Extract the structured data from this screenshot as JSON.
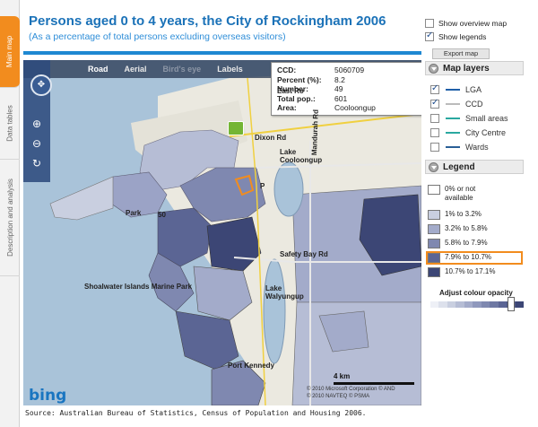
{
  "tabs": [
    {
      "label": "Main map"
    },
    {
      "label": "Data tables"
    },
    {
      "label": "Description and analysis"
    }
  ],
  "header": {
    "title": "Persons aged 0 to 4 years, the City of Rockingham 2006",
    "subtitle": "(As a percentage of total persons excluding overseas visitors)"
  },
  "options": {
    "overview": {
      "label": "Show overview map",
      "checked": false
    },
    "legends": {
      "label": "Show legends",
      "checked": true
    },
    "export_label": "Export map"
  },
  "map": {
    "view_tabs": [
      {
        "label": "Road",
        "state": "selected"
      },
      {
        "label": "Aerial",
        "state": "normal"
      },
      {
        "label": "Bird's eye",
        "state": "disabled"
      },
      {
        "label": "Labels",
        "state": "normal"
      }
    ],
    "tooltip": [
      {
        "key": "CCD:",
        "value": "5060709"
      },
      {
        "key": "Percent (%):",
        "value": "8.2"
      },
      {
        "key": "Number:",
        "value": "49"
      },
      {
        "key": "Total pop.:",
        "value": "601"
      },
      {
        "key": "Area:",
        "value": "Cooloongup"
      }
    ],
    "places": {
      "east_rockingham": "East Ro",
      "dixon_rd": "Dixon Rd",
      "lake_cooloongup": "Lake Cooloongup",
      "park": "Park",
      "road_num": "50",
      "p": "P",
      "safety_bay_rd": "Safety Bay Rd",
      "lake_walyungup": "Lake Walyungup",
      "shoalwater": "Shoalwater Islands Marine Park",
      "port_kennedy": "Port Kennedy",
      "mandurah_rd": "Mandurah Rd"
    },
    "scale": "4 km",
    "copyright1": "© 2010 Microsoft Corporation  © AND",
    "copyright2": "© 2010 NAVTEQ  © PSMA",
    "brand": "bing"
  },
  "layers": {
    "title": "Map layers",
    "items": [
      {
        "label": "LGA",
        "checked": true,
        "color": "#1f5fa8"
      },
      {
        "label": "CCD",
        "checked": true,
        "color": "#bbbbbb"
      },
      {
        "label": "Small areas",
        "checked": false,
        "color": "#2aa8a0"
      },
      {
        "label": "City Centre",
        "checked": false,
        "color": "#2aa8a0"
      },
      {
        "label": "Wards",
        "checked": false,
        "color": "#2a5f96"
      }
    ]
  },
  "legend": {
    "title": "Legend",
    "items": [
      {
        "label": "0% or not available",
        "color": "#ffffff"
      },
      {
        "label": "1% to 3.2%",
        "color": "#c9cfe0"
      },
      {
        "label": "3.2% to 5.8%",
        "color": "#a3abca"
      },
      {
        "label": "5.8% to 7.9%",
        "color": "#7f88b0"
      },
      {
        "label": "7.9% to 10.7%",
        "color": "#5b6594",
        "highlighted": true
      },
      {
        "label": "10.7% to 17.1%",
        "color": "#3c4675"
      }
    ],
    "opacity_label": "Adjust colour opacity"
  },
  "source": "Source: Australian Bureau of Statistics, Census of Population and Housing 2006.",
  "colors": {
    "accent": "#1e88d2",
    "tab_active": "#f28c1e",
    "water": "#a9c3d9"
  }
}
